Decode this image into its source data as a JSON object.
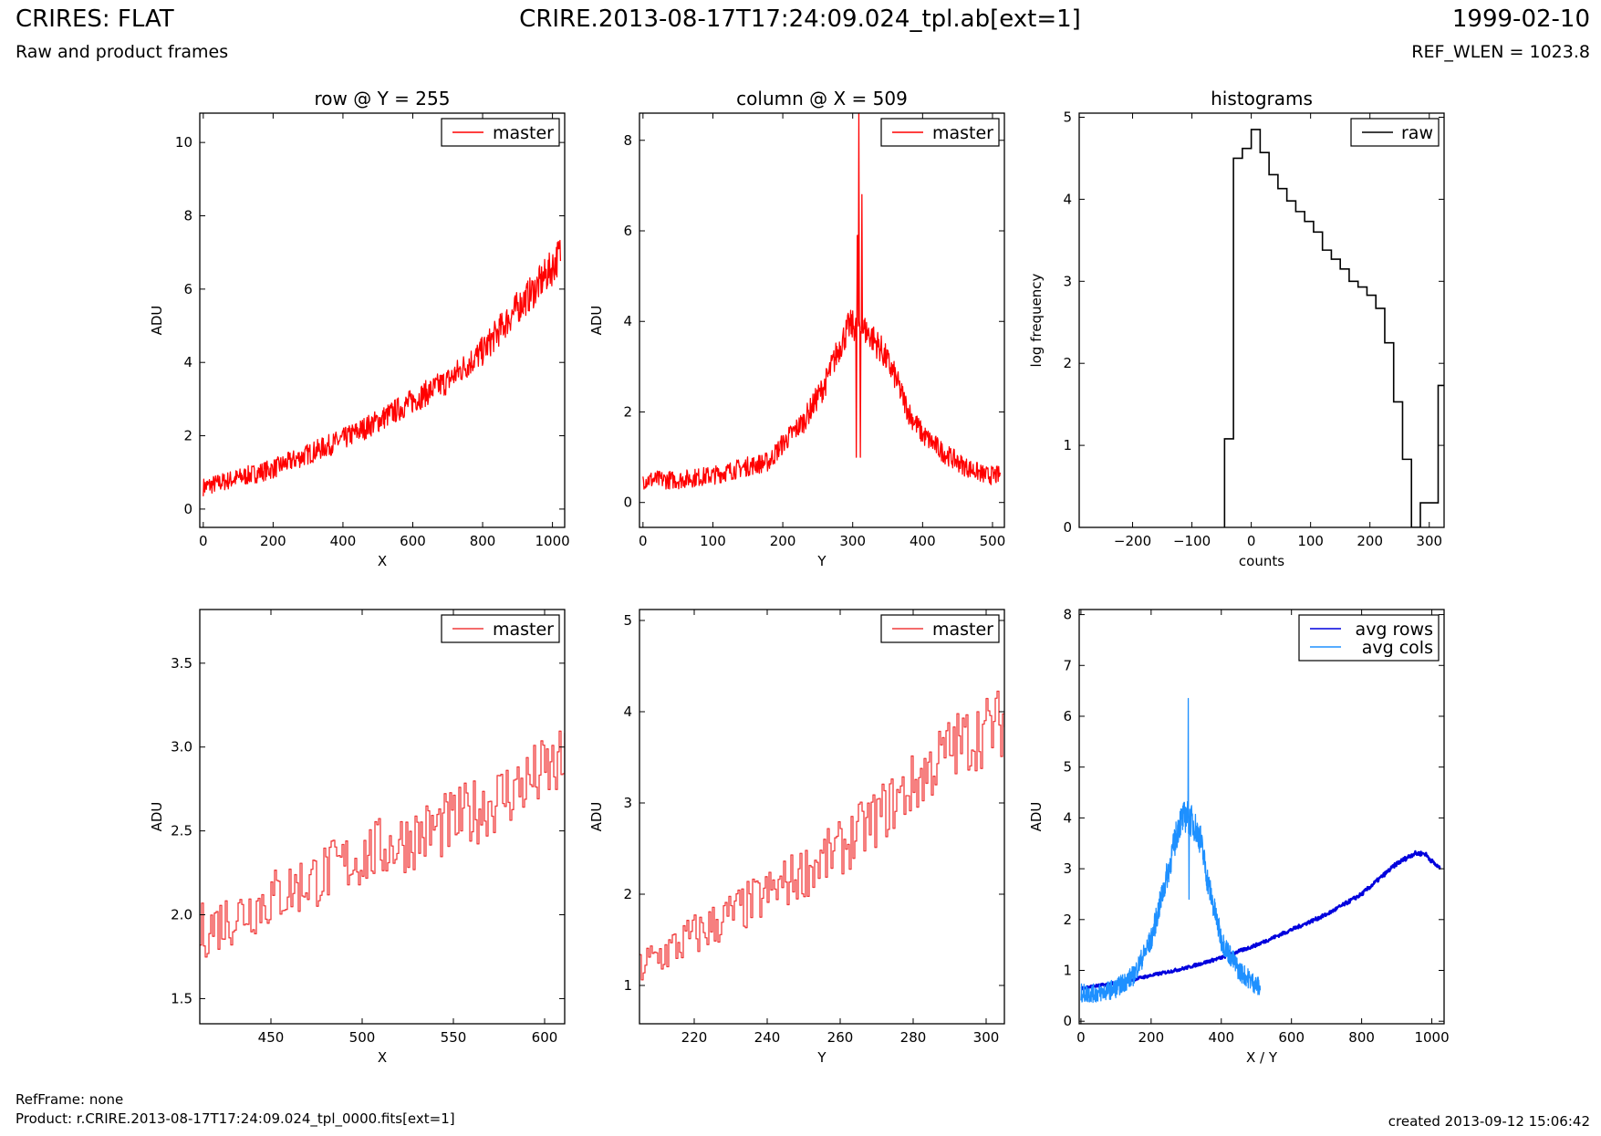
{
  "header": {
    "title_left": "CRIRES: FLAT",
    "subtitle_left": "Raw and product frames",
    "title_center": "CRIRE.2013-08-17T17:24:09.024_tpl.ab[ext=1]",
    "title_right": "1999-02-10",
    "subtitle_right": "REF_WLEN = 1023.8"
  },
  "footer": {
    "refframe": "RefFrame: none",
    "product": "Product: r.CRIRE.2013-08-17T17:24:09.024_tpl_0000.fits[ext=1]",
    "created": "created 2013-09-12 15:06:42"
  },
  "colors": {
    "red": "#ff0000",
    "red_light": "#f03c3c",
    "black": "#000000",
    "blue": "#0000dd",
    "light_blue": "#1e90ff"
  },
  "chart_data": [
    {
      "id": "row",
      "type": "line",
      "title": "row @ Y = 255",
      "xlabel": "X",
      "ylabel": "ADU",
      "xlim": [
        -10,
        1035
      ],
      "ylim": [
        -0.5,
        10.8
      ],
      "xticks": [
        0,
        200,
        400,
        600,
        800,
        1000
      ],
      "yticks": [
        0,
        2,
        4,
        6,
        8,
        10
      ],
      "legend": "top-right",
      "series": [
        {
          "name": "master",
          "color": "#ff0000",
          "style": "noisy",
          "x": [
            0,
            100,
            200,
            300,
            400,
            500,
            600,
            700,
            800,
            850,
            900,
            950,
            1000,
            1023
          ],
          "y": [
            0.6,
            0.85,
            1.1,
            1.5,
            1.9,
            2.4,
            2.95,
            3.5,
            4.3,
            4.9,
            5.5,
            6.0,
            6.6,
            7.0
          ]
        }
      ]
    },
    {
      "id": "column",
      "type": "line",
      "title": "column @ X = 509",
      "xlabel": "Y",
      "ylabel": "ADU",
      "xlim": [
        -5,
        517
      ],
      "ylim": [
        -0.55,
        8.6
      ],
      "xticks": [
        0,
        100,
        200,
        300,
        400,
        500
      ],
      "yticks": [
        0,
        2,
        4,
        6,
        8
      ],
      "legend": "top-right",
      "series": [
        {
          "name": "master",
          "color": "#ff0000",
          "style": "noisy",
          "x": [
            0,
            50,
            100,
            150,
            180,
            200,
            230,
            260,
            280,
            295,
            310,
            325,
            340,
            360,
            380,
            400,
            430,
            460,
            490,
            511
          ],
          "y": [
            0.5,
            0.5,
            0.6,
            0.8,
            0.9,
            1.3,
            1.8,
            2.6,
            3.4,
            3.9,
            3.9,
            3.7,
            3.4,
            2.8,
            2.0,
            1.5,
            1.1,
            0.8,
            0.6,
            0.6
          ],
          "spikes": [
            [
              307,
              5.9
            ],
            [
              309,
              8.6
            ],
            [
              311,
              1.0
            ],
            [
              313,
              6.8
            ],
            [
              305,
              1.0
            ]
          ]
        }
      ]
    },
    {
      "id": "hist",
      "type": "line",
      "title": "histograms",
      "xlabel": "counts",
      "ylabel": "log frequency",
      "xlim": [
        -290,
        325
      ],
      "ylim": [
        0,
        5.05
      ],
      "xticks": [
        -200,
        -100,
        0,
        100,
        200,
        300
      ],
      "yticks": [
        0,
        1,
        2,
        3,
        4,
        5
      ],
      "legend": "top-right",
      "series": [
        {
          "name": "raw",
          "color": "#000000",
          "style": "steps",
          "bins": [
            -45,
            -30,
            -15,
            0,
            15,
            30,
            45,
            60,
            75,
            90,
            105,
            120,
            135,
            150,
            165,
            180,
            195,
            210,
            225,
            240,
            255,
            270,
            285,
            300,
            315
          ],
          "counts": [
            1.08,
            4.5,
            4.62,
            4.85,
            4.57,
            4.3,
            4.13,
            3.98,
            3.85,
            3.73,
            3.6,
            3.38,
            3.27,
            3.15,
            3.0,
            2.93,
            2.83,
            2.67,
            2.25,
            1.53,
            0.83,
            0,
            0.3,
            0.3,
            1.73
          ]
        }
      ]
    },
    {
      "id": "row-zoom",
      "type": "line",
      "title": "",
      "xlabel": "X",
      "ylabel": "ADU",
      "xlim": [
        411,
        611
      ],
      "ylim": [
        1.35,
        3.82
      ],
      "xticks": [
        450,
        500,
        550,
        600
      ],
      "yticks": [
        1.5,
        2.0,
        2.5,
        3.0,
        3.5
      ],
      "yfmt": 1,
      "legend": "top-right",
      "series": [
        {
          "name": "master",
          "color": "#f03c3c",
          "style": "noisy-steps",
          "x": [
            411,
            450,
            500,
            550,
            575,
            600,
            611
          ],
          "y": [
            1.9,
            2.1,
            2.35,
            2.55,
            2.7,
            2.85,
            2.9
          ]
        }
      ]
    },
    {
      "id": "col-zoom",
      "type": "line",
      "title": "",
      "xlabel": "Y",
      "ylabel": "ADU",
      "xlim": [
        205,
        305
      ],
      "ylim": [
        0.58,
        5.12
      ],
      "xticks": [
        220,
        240,
        260,
        280,
        300
      ],
      "yticks": [
        1,
        2,
        3,
        4,
        5
      ],
      "legend": "top-right",
      "series": [
        {
          "name": "master",
          "color": "#f03c3c",
          "style": "noisy-steps",
          "x": [
            205,
            220,
            240,
            260,
            280,
            290,
            305
          ],
          "y": [
            1.2,
            1.55,
            2.0,
            2.5,
            3.2,
            3.6,
            3.9
          ]
        }
      ]
    },
    {
      "id": "avg",
      "type": "line",
      "title": "",
      "xlabel": "X / Y",
      "ylabel": "ADU",
      "xlim": [
        -5,
        1035
      ],
      "ylim": [
        -0.05,
        8.1
      ],
      "xticks": [
        0,
        200,
        400,
        600,
        800,
        1000
      ],
      "yticks": [
        0,
        1,
        2,
        3,
        4,
        5,
        6,
        7,
        8
      ],
      "legend": "top-right",
      "series": [
        {
          "name": "avg rows",
          "color": "#0000dd",
          "style": "thick",
          "x": [
            0,
            100,
            200,
            300,
            400,
            500,
            600,
            700,
            800,
            850,
            900,
            950,
            980,
            1000,
            1023
          ],
          "y": [
            0.65,
            0.75,
            0.9,
            1.05,
            1.25,
            1.5,
            1.8,
            2.1,
            2.5,
            2.8,
            3.1,
            3.3,
            3.3,
            3.15,
            3.0
          ]
        },
        {
          "name": "avg cols",
          "color": "#1e90ff",
          "style": "noisy",
          "x": [
            0,
            50,
            100,
            150,
            200,
            250,
            280,
            300,
            320,
            340,
            360,
            400,
            450,
            511
          ],
          "y": [
            0.55,
            0.55,
            0.65,
            0.9,
            1.6,
            3.0,
            3.9,
            4.05,
            3.9,
            3.6,
            2.8,
            1.6,
            1.0,
            0.65
          ],
          "spikes": [
            [
              306,
              6.35
            ],
            [
              308,
              2.4
            ]
          ]
        }
      ]
    }
  ]
}
